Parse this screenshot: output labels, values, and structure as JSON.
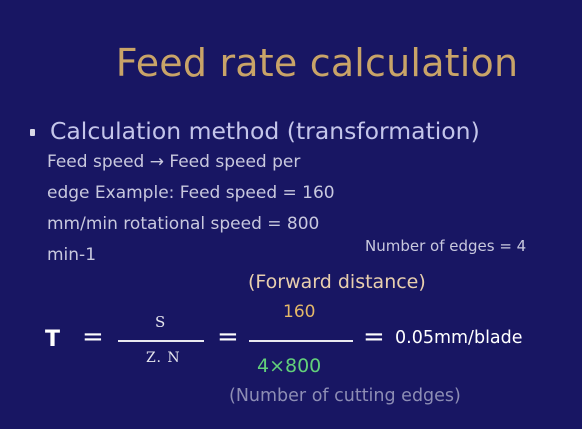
{
  "slide": {
    "title": "Feed rate calculation",
    "bullet": "Calculation method (transformation)",
    "description_lines": [
      "Feed speed → Feed speed per",
      "edge Example: Feed speed = 160",
      "mm/min rotational speed = 800",
      "min-1"
    ],
    "edges_note": "Number of edges = 4",
    "forward_label": "(Forward distance)",
    "formula": {
      "symbol": "T",
      "equals": "=",
      "numerator_symbol": "S",
      "denominator_symbol": "Z. N",
      "numerator_value": "160",
      "denominator_value": "4×800",
      "result": "0.05mm/blade"
    },
    "cutting_edges_label": "(Number of cutting edges)"
  },
  "colors": {
    "background": "#181663",
    "title": "#c9a468",
    "numerator_value": "#e4b868",
    "denominator_value": "#62d07a",
    "forward_label": "#e8cfae",
    "cutting_edges_label": "#8d8db4"
  }
}
